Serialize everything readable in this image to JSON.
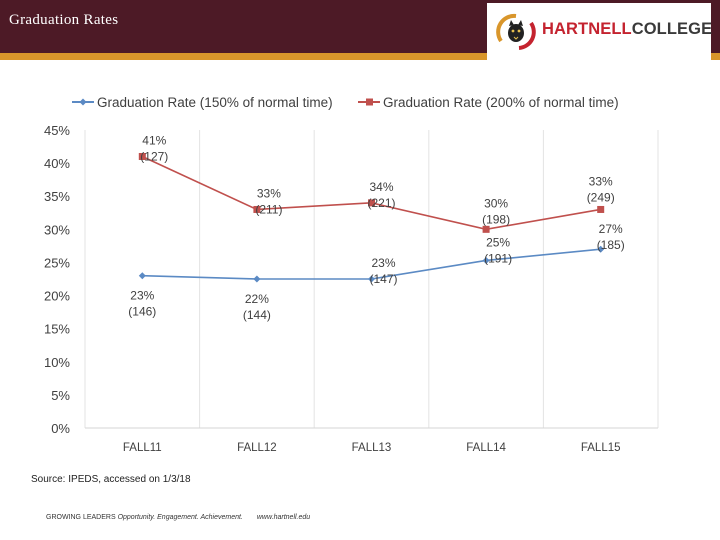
{
  "header": {
    "title": "Graduation Rates",
    "logo": {
      "name_part1": "HARTNELL",
      "name_part2": "COLLEGE",
      "icon": "panther-emblem-icon"
    }
  },
  "colors": {
    "header_bg": "#4d1a26",
    "accent_gold": "#d9962b",
    "series1": "#5b8ac4",
    "series2": "#c0504d"
  },
  "chart_data": {
    "type": "line",
    "title": "",
    "categories": [
      "FALL11",
      "FALL12",
      "FALL13",
      "FALL14",
      "FALL15"
    ],
    "series": [
      {
        "name": "Graduation Rate (150% of normal time)",
        "values": [
          23,
          22.5,
          22.5,
          25.3,
          27
        ],
        "labels": [
          "23%",
          "22%",
          "23%",
          "25%",
          "27%"
        ],
        "counts": [
          "(146)",
          "(144)",
          "(147)",
          "(191)",
          "(185)"
        ]
      },
      {
        "name": "Graduation Rate (200% of normal time)",
        "values": [
          41,
          33,
          34,
          30,
          33
        ],
        "labels": [
          "41%",
          "33%",
          "34%",
          "30%",
          "33%"
        ],
        "counts": [
          "(127)",
          "(211)",
          "(221)",
          "(198)",
          "(249)"
        ]
      }
    ],
    "y_ticks": [
      "0%",
      "5%",
      "10%",
      "15%",
      "20%",
      "25%",
      "30%",
      "35%",
      "40%",
      "45%"
    ],
    "ylim": [
      0,
      45
    ],
    "legend_position": "top",
    "grid": "vertical"
  },
  "source": "Source: IPEDS, accessed on 1/3/18",
  "footer": {
    "lead": "GROWING LEADERS",
    "tagline": "Opportunity. Engagement. Achievement.",
    "url": "www.hartnell.edu"
  }
}
